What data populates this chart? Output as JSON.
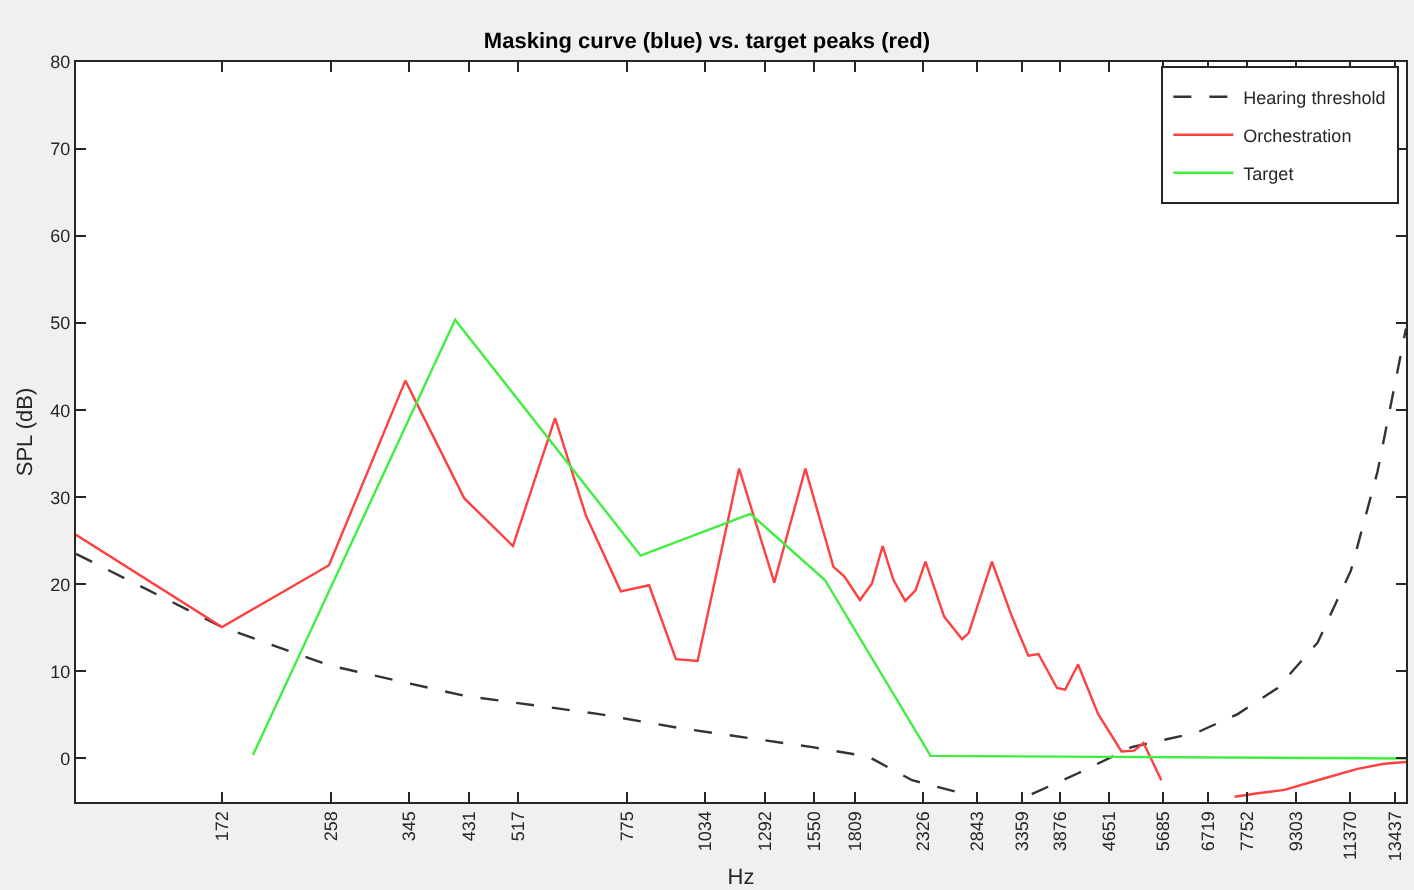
{
  "chart_data": {
    "type": "line",
    "title": "Masking curve (blue) vs. target peaks (red)",
    "xlabel": "Hz",
    "ylabel": "SPL (dB)",
    "log": "x",
    "xlim": [
      100,
      14000
    ],
    "ylim": [
      -5,
      80
    ],
    "xticks": [
      172,
      258,
      345,
      431,
      517,
      775,
      1034,
      1292,
      1550,
      1809,
      2326,
      2843,
      3359,
      3876,
      4651,
      5685,
      6719,
      7752,
      9303,
      11370,
      13437
    ],
    "yticks": [
      0,
      10,
      20,
      30,
      40,
      50,
      60,
      70,
      80
    ],
    "legend": "top right",
    "marker": "none",
    "series": [
      {
        "name": "Hearing threshold",
        "color": "#333333",
        "line_style": "dashed",
        "x": [
          100,
          172,
          256,
          423,
          699,
          940,
          1542,
          1900,
          2234,
          2722,
          3000,
          3485,
          4140,
          5050,
          6450,
          7490,
          8690,
          10080,
          11410,
          12590,
          14000
        ],
        "values": [
          23.5,
          15.1,
          10.7,
          7.2,
          5.1,
          3.5,
          1.3,
          0.2,
          -2.5,
          -4.1,
          null,
          -4.1,
          -1.7,
          1.3,
          3.0,
          5.1,
          8.1,
          13.3,
          21.6,
          32.9,
          49.4
        ]
      },
      {
        "name": "Orchestration",
        "color": "#ff4040",
        "line_style": "solid",
        "x": [
          100,
          172,
          256,
          340,
          423,
          507,
          593,
          665,
          757,
          841,
          929,
          1007,
          1175,
          1339,
          1503,
          1668,
          1738,
          1841,
          1925,
          2003,
          2085,
          2178,
          2263,
          2348,
          2517,
          2690,
          2757,
          3006,
          3238,
          3441,
          3573,
          3828,
          3945,
          4140,
          4461,
          4865,
          5100,
          5279,
          5640,
          6500,
          7404,
          8070,
          8910,
          10080,
          11690,
          12900,
          14000
        ],
        "values": [
          25.7,
          15.1,
          22.2,
          43.4,
          29.9,
          24.4,
          39.1,
          27.9,
          19.2,
          19.9,
          11.4,
          11.2,
          33.3,
          20.2,
          33.3,
          22.0,
          20.9,
          18.2,
          20.1,
          24.4,
          20.5,
          18.1,
          19.3,
          22.6,
          16.3,
          13.7,
          14.4,
          22.6,
          16.3,
          11.8,
          12.0,
          8.1,
          7.9,
          10.8,
          5.1,
          0.8,
          0.9,
          1.8,
          -2.5,
          null,
          -4.4,
          -4.0,
          -3.6,
          -2.5,
          -1.2,
          -0.6,
          -0.4
        ]
      },
      {
        "name": "Target",
        "color": "#40ee40",
        "line_style": "solid",
        "x": [
          193,
          409,
          815,
          1225,
          1616,
          2393,
          14000
        ],
        "values": [
          0.4,
          50.4,
          23.3,
          28.1,
          20.5,
          0.3,
          0
        ]
      }
    ]
  }
}
